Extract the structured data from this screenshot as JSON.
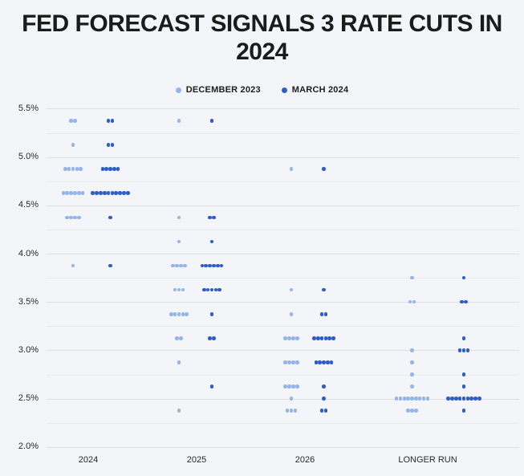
{
  "chart_data": {
    "type": "scatter",
    "subtype": "dot-plot",
    "title": "FED FORECAST SIGNALS 3 RATE CUTS IN 2024",
    "categories": [
      "2024",
      "2025",
      "2026",
      "LONGER RUN"
    ],
    "y_axis": {
      "min": 2.0,
      "max": 5.5,
      "grid_step": 0.25,
      "label_step": 0.5,
      "tick_labels": [
        "5.5%",
        "5.0%",
        "4.5%",
        "4.0%",
        "3.5%",
        "3.0%",
        "2.5%",
        "2.0%"
      ],
      "unit": "percent"
    },
    "legend": [
      {
        "label": "DECEMBER 2023",
        "color": "#94b5ea"
      },
      {
        "label": "MARCH 2024",
        "color": "#2d5dcb"
      }
    ],
    "grid": true,
    "legend_position": "top-center",
    "series": [
      {
        "name": "DECEMBER 2023",
        "color": "#94b5ea",
        "points": [
          {
            "category": "2024",
            "rate": 5.375,
            "count": 2
          },
          {
            "category": "2024",
            "rate": 5.125,
            "count": 1
          },
          {
            "category": "2024",
            "rate": 4.875,
            "count": 5
          },
          {
            "category": "2024",
            "rate": 4.625,
            "count": 6
          },
          {
            "category": "2024",
            "rate": 4.375,
            "count": 4
          },
          {
            "category": "2024",
            "rate": 3.875,
            "count": 1
          },
          {
            "category": "2025",
            "rate": 5.375,
            "count": 1
          },
          {
            "category": "2025",
            "rate": 4.375,
            "count": 1
          },
          {
            "category": "2025",
            "rate": 4.125,
            "count": 1
          },
          {
            "category": "2025",
            "rate": 3.875,
            "count": 4
          },
          {
            "category": "2025",
            "rate": 3.625,
            "count": 3
          },
          {
            "category": "2025",
            "rate": 3.375,
            "count": 5
          },
          {
            "category": "2025",
            "rate": 3.125,
            "count": 2
          },
          {
            "category": "2025",
            "rate": 2.875,
            "count": 1
          },
          {
            "category": "2025",
            "rate": 2.375,
            "count": 1
          },
          {
            "category": "2026",
            "rate": 4.875,
            "count": 1
          },
          {
            "category": "2026",
            "rate": 3.625,
            "count": 1
          },
          {
            "category": "2026",
            "rate": 3.375,
            "count": 1
          },
          {
            "category": "2026",
            "rate": 3.125,
            "count": 4
          },
          {
            "category": "2026",
            "rate": 2.875,
            "count": 4
          },
          {
            "category": "2026",
            "rate": 2.625,
            "count": 4
          },
          {
            "category": "2026",
            "rate": 2.5,
            "count": 1
          },
          {
            "category": "2026",
            "rate": 2.375,
            "count": 3
          },
          {
            "category": "LONGER RUN",
            "rate": 3.75,
            "count": 1
          },
          {
            "category": "LONGER RUN",
            "rate": 3.5,
            "count": 2
          },
          {
            "category": "LONGER RUN",
            "rate": 3.0,
            "count": 1
          },
          {
            "category": "LONGER RUN",
            "rate": 2.875,
            "count": 1
          },
          {
            "category": "LONGER RUN",
            "rate": 2.75,
            "count": 1
          },
          {
            "category": "LONGER RUN",
            "rate": 2.625,
            "count": 1
          },
          {
            "category": "LONGER RUN",
            "rate": 2.5,
            "count": 9
          },
          {
            "category": "LONGER RUN",
            "rate": 2.375,
            "count": 3
          }
        ]
      },
      {
        "name": "MARCH 2024",
        "color": "#2d5dcb",
        "points": [
          {
            "category": "2024",
            "rate": 5.375,
            "count": 2
          },
          {
            "category": "2024",
            "rate": 5.125,
            "count": 2
          },
          {
            "category": "2024",
            "rate": 4.875,
            "count": 5
          },
          {
            "category": "2024",
            "rate": 4.625,
            "count": 10
          },
          {
            "category": "2024",
            "rate": 4.375,
            "count": 1
          },
          {
            "category": "2024",
            "rate": 3.875,
            "count": 1
          },
          {
            "category": "2025",
            "rate": 5.375,
            "count": 1
          },
          {
            "category": "2025",
            "rate": 4.375,
            "count": 2
          },
          {
            "category": "2025",
            "rate": 4.125,
            "count": 1
          },
          {
            "category": "2025",
            "rate": 3.875,
            "count": 6
          },
          {
            "category": "2025",
            "rate": 3.625,
            "count": 5
          },
          {
            "category": "2025",
            "rate": 3.375,
            "count": 1
          },
          {
            "category": "2025",
            "rate": 3.125,
            "count": 2
          },
          {
            "category": "2025",
            "rate": 2.625,
            "count": 1
          },
          {
            "category": "2026",
            "rate": 4.875,
            "count": 1
          },
          {
            "category": "2026",
            "rate": 3.625,
            "count": 1
          },
          {
            "category": "2026",
            "rate": 3.375,
            "count": 2
          },
          {
            "category": "2026",
            "rate": 3.125,
            "count": 6
          },
          {
            "category": "2026",
            "rate": 2.875,
            "count": 5
          },
          {
            "category": "2026",
            "rate": 2.625,
            "count": 1
          },
          {
            "category": "2026",
            "rate": 2.5,
            "count": 1
          },
          {
            "category": "2026",
            "rate": 2.375,
            "count": 2
          },
          {
            "category": "LONGER RUN",
            "rate": 3.75,
            "count": 1
          },
          {
            "category": "LONGER RUN",
            "rate": 3.5,
            "count": 2
          },
          {
            "category": "LONGER RUN",
            "rate": 3.125,
            "count": 1
          },
          {
            "category": "LONGER RUN",
            "rate": 3.0,
            "count": 3
          },
          {
            "category": "LONGER RUN",
            "rate": 2.75,
            "count": 1
          },
          {
            "category": "LONGER RUN",
            "rate": 2.625,
            "count": 1
          },
          {
            "category": "LONGER RUN",
            "rate": 2.5,
            "count": 9
          },
          {
            "category": "LONGER RUN",
            "rate": 2.375,
            "count": 1
          }
        ]
      }
    ]
  }
}
